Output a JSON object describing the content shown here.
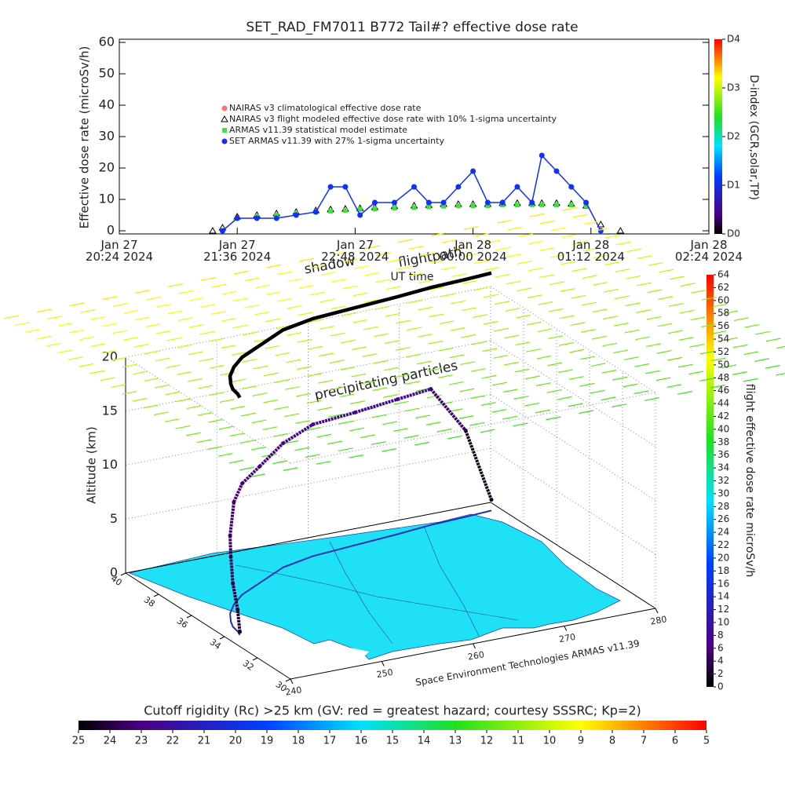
{
  "chart_data": [
    {
      "type": "scatter",
      "title": "SET_RAD_FM7011  B772 Tail#? effective dose rate",
      "y_label": "Effective dose rate (microSv/h)",
      "x_label": "UT time",
      "xlim": [
        20.4,
        26.4
      ],
      "xticks": [
        {
          "value": 20.4,
          "label": "Jan 27\n20:24 2024"
        },
        {
          "value": 21.6,
          "label": "Jan 27\n21:36 2024"
        },
        {
          "value": 22.8,
          "label": "Jan 27\n22:48 2024"
        },
        {
          "value": 24.0,
          "label": "Jan 28\n00:00 2024"
        },
        {
          "value": 25.2,
          "label": "Jan 28\n01:12 2024"
        },
        {
          "value": 26.4,
          "label": "Jan 28\n02:24 2024"
        }
      ],
      "ylim": [
        -1,
        61
      ],
      "yticks": [
        0,
        10,
        20,
        30,
        40,
        50,
        60
      ],
      "x": [
        21.35,
        21.45,
        21.6,
        21.8,
        22.0,
        22.2,
        22.4,
        22.55,
        22.7,
        22.85,
        23.0,
        23.2,
        23.4,
        23.55,
        23.7,
        23.85,
        24.0,
        24.15,
        24.3,
        24.45,
        24.6,
        24.7,
        24.85,
        25.0,
        25.15,
        25.3,
        25.5
      ],
      "series": [
        {
          "name": "NAIRAS v3 climatological effective dose rate",
          "color": "#ff7070",
          "marker": "circle",
          "values": [
            null,
            null,
            4.5,
            null,
            null,
            null,
            null,
            null,
            null,
            null,
            null,
            null,
            null,
            null,
            null,
            null,
            null,
            null,
            null,
            null,
            null,
            null,
            null,
            null,
            null,
            null,
            null
          ]
        },
        {
          "name": "NAIRAS v3 flight modeled effective dose rate with 10% 1-sigma uncertainty",
          "color": "#000000",
          "marker": "triangle",
          "values": [
            0,
            1,
            4.5,
            5,
            5.5,
            6,
            6.5,
            6.8,
            7,
            7.2,
            7.5,
            7.8,
            8,
            8.2,
            8.5,
            8.5,
            8.5,
            8.5,
            8.8,
            8.8,
            8.8,
            8.8,
            8.8,
            8.6,
            8,
            2,
            0
          ]
        },
        {
          "name": "ARMAS v11.39 statistical model estimate",
          "color": "#40e040",
          "marker": "square",
          "values": [
            null,
            0,
            4,
            4.5,
            5,
            5.5,
            6,
            6.2,
            6.5,
            6.8,
            7,
            7.2,
            7.4,
            7.6,
            7.8,
            8,
            8,
            8,
            8.2,
            8.2,
            8.2,
            8.2,
            8.2,
            8.2,
            8,
            0,
            null
          ]
        },
        {
          "name": "SET ARMAS v11.39 with 27% 1-sigma uncertainty",
          "color": "#1030ff",
          "marker": "dot",
          "values": [
            null,
            0,
            4,
            4,
            4,
            5,
            6,
            14,
            14,
            5,
            9,
            9,
            14,
            9,
            9,
            14,
            19,
            9,
            9,
            14,
            9,
            24,
            19,
            14,
            9,
            0,
            null
          ]
        }
      ],
      "colorbar": {
        "label": "D-index (GCR,solar,TP)",
        "lim": [
          0,
          4
        ],
        "ticks": [
          {
            "value": 0,
            "label": "D0"
          },
          {
            "value": 1,
            "label": "D1"
          },
          {
            "value": 2,
            "label": "D2"
          },
          {
            "value": 3,
            "label": "D3"
          },
          {
            "value": 4,
            "label": "D4"
          }
        ]
      }
    },
    {
      "type": "flight3d",
      "annotations": [
        "shadow",
        "flightpath",
        "precipitating particles",
        "Space Environment Technologies ARMAS v11.39"
      ],
      "z_label": "Altitude (km)",
      "zlim": [
        0,
        20
      ],
      "zticks": [
        0,
        5,
        10,
        15,
        20
      ],
      "latlim": [
        30,
        40
      ],
      "latticks": [
        30,
        32,
        34,
        36,
        38,
        40
      ],
      "lonlim": [
        240,
        280
      ],
      "lonticks": [
        240,
        250,
        260,
        270,
        280
      ],
      "lon": [
        241.5,
        241.8,
        242,
        242.5,
        243.5,
        245,
        247,
        250,
        254,
        258,
        263,
        268,
        272,
        276,
        279
      ],
      "lat": [
        33.9,
        34.2,
        34.6,
        35,
        35.6,
        36.2,
        36.8,
        37.4,
        38.2,
        38.6,
        38.8,
        39,
        39.2,
        39.3,
        39.4
      ],
      "alt": [
        0.3,
        2,
        4,
        6,
        7.2,
        9.5,
        10.3,
        10.8,
        11.5,
        12.2,
        12.3,
        12.5,
        12.6,
        8,
        1
      ],
      "dose": [
        1,
        2,
        3,
        4,
        4,
        5,
        6,
        6,
        7,
        8,
        8,
        8,
        8,
        5,
        1
      ],
      "colorbar": {
        "label": "flight effective dose rate microSv/h",
        "lim": [
          0,
          64
        ],
        "ticks": [
          0,
          2,
          4,
          6,
          8,
          10,
          12,
          14,
          16,
          18,
          20,
          22,
          24,
          26,
          28,
          30,
          32,
          34,
          36,
          38,
          40,
          42,
          44,
          46,
          48,
          50,
          52,
          54,
          56,
          58,
          60,
          62,
          64
        ]
      }
    },
    {
      "type": "colorbar",
      "title": "Cutoff rigidity (Rc) >25 km (GV: red = greatest hazard; courtesy SSSRC; Kp=2)",
      "xlim": [
        25,
        5
      ],
      "xticks": [
        25,
        24,
        23,
        22,
        21,
        20,
        19,
        18,
        17,
        16,
        15,
        14,
        13,
        12,
        11,
        10,
        9,
        8,
        7,
        6,
        5
      ]
    }
  ]
}
